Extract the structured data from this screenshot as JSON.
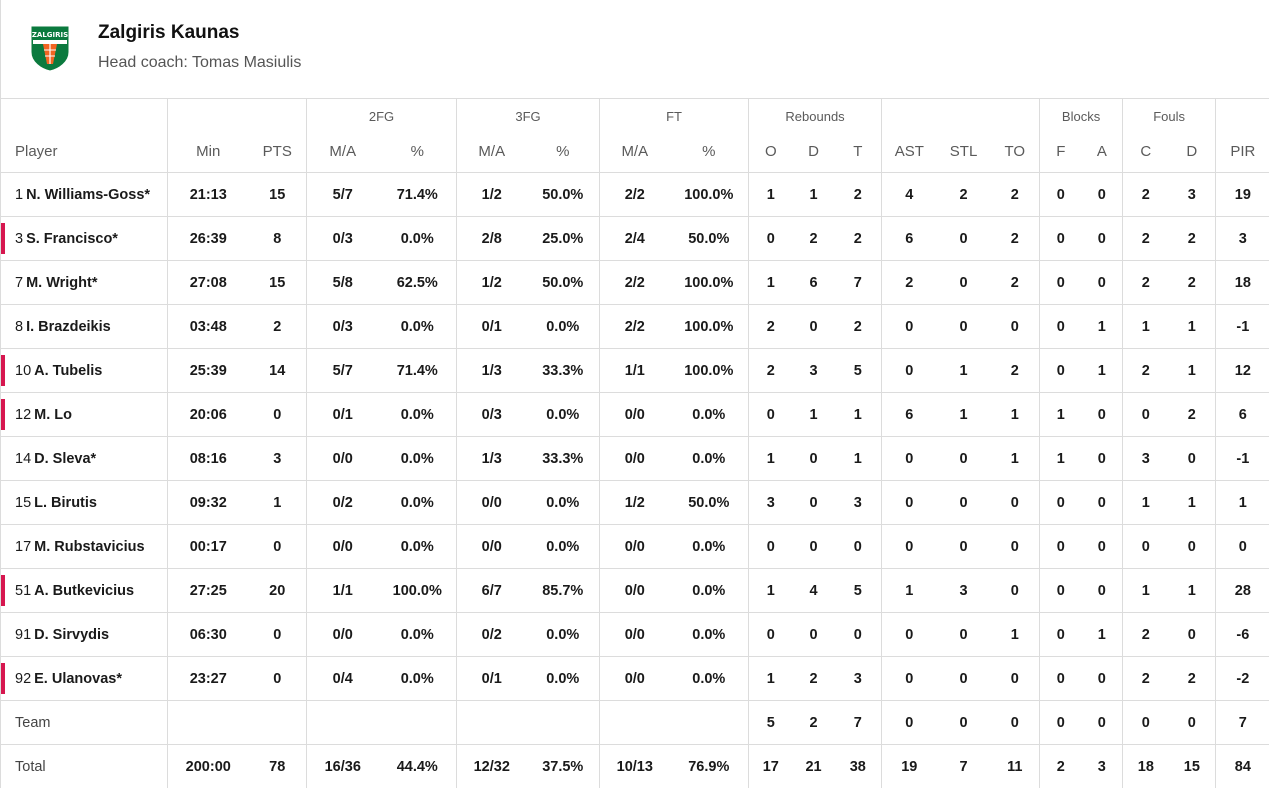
{
  "team": {
    "name": "Zalgiris Kaunas",
    "coach": "Head coach: Tomas Masiulis",
    "logo_text": "ZALGIRIS",
    "logo_colors": {
      "green": "#0b7a3e",
      "orange": "#f26522",
      "white": "#ffffff"
    }
  },
  "colors": {
    "starter_bar": "#d6174f",
    "divider": "#dcdcdc"
  },
  "groups": {
    "twofg": "2FG",
    "threefg": "3FG",
    "ft": "FT",
    "rebounds": "Rebounds",
    "blocks": "Blocks",
    "fouls": "Fouls"
  },
  "columns": {
    "player": "Player",
    "min": "Min",
    "pts": "PTS",
    "twofg_ma": "M/A",
    "twofg_pct": "%",
    "threefg_ma": "M/A",
    "threefg_pct": "%",
    "ft_ma": "M/A",
    "ft_pct": "%",
    "reb_o": "O",
    "reb_d": "D",
    "reb_t": "T",
    "ast": "AST",
    "stl": "STL",
    "to": "TO",
    "blk_f": "F",
    "blk_a": "A",
    "foul_c": "C",
    "foul_d": "D",
    "pir": "PIR"
  },
  "players": [
    {
      "num": "1",
      "name": "N. Williams-Goss*",
      "marked": false,
      "min": "21:13",
      "pts": "15",
      "twofg_ma": "5/7",
      "twofg_pct": "71.4%",
      "threefg_ma": "1/2",
      "threefg_pct": "50.0%",
      "ft_ma": "2/2",
      "ft_pct": "100.0%",
      "reb_o": "1",
      "reb_d": "1",
      "reb_t": "2",
      "ast": "4",
      "stl": "2",
      "to": "2",
      "blk_f": "0",
      "blk_a": "0",
      "foul_c": "2",
      "foul_d": "3",
      "pir": "19"
    },
    {
      "num": "3",
      "name": "S. Francisco*",
      "marked": true,
      "min": "26:39",
      "pts": "8",
      "twofg_ma": "0/3",
      "twofg_pct": "0.0%",
      "threefg_ma": "2/8",
      "threefg_pct": "25.0%",
      "ft_ma": "2/4",
      "ft_pct": "50.0%",
      "reb_o": "0",
      "reb_d": "2",
      "reb_t": "2",
      "ast": "6",
      "stl": "0",
      "to": "2",
      "blk_f": "0",
      "blk_a": "0",
      "foul_c": "2",
      "foul_d": "2",
      "pir": "3"
    },
    {
      "num": "7",
      "name": "M. Wright*",
      "marked": false,
      "min": "27:08",
      "pts": "15",
      "twofg_ma": "5/8",
      "twofg_pct": "62.5%",
      "threefg_ma": "1/2",
      "threefg_pct": "50.0%",
      "ft_ma": "2/2",
      "ft_pct": "100.0%",
      "reb_o": "1",
      "reb_d": "6",
      "reb_t": "7",
      "ast": "2",
      "stl": "0",
      "to": "2",
      "blk_f": "0",
      "blk_a": "0",
      "foul_c": "2",
      "foul_d": "2",
      "pir": "18"
    },
    {
      "num": "8",
      "name": "I. Brazdeikis",
      "marked": false,
      "min": "03:48",
      "pts": "2",
      "twofg_ma": "0/3",
      "twofg_pct": "0.0%",
      "threefg_ma": "0/1",
      "threefg_pct": "0.0%",
      "ft_ma": "2/2",
      "ft_pct": "100.0%",
      "reb_o": "2",
      "reb_d": "0",
      "reb_t": "2",
      "ast": "0",
      "stl": "0",
      "to": "0",
      "blk_f": "0",
      "blk_a": "1",
      "foul_c": "1",
      "foul_d": "1",
      "pir": "-1"
    },
    {
      "num": "10",
      "name": "A. Tubelis",
      "marked": true,
      "min": "25:39",
      "pts": "14",
      "twofg_ma": "5/7",
      "twofg_pct": "71.4%",
      "threefg_ma": "1/3",
      "threefg_pct": "33.3%",
      "ft_ma": "1/1",
      "ft_pct": "100.0%",
      "reb_o": "2",
      "reb_d": "3",
      "reb_t": "5",
      "ast": "0",
      "stl": "1",
      "to": "2",
      "blk_f": "0",
      "blk_a": "1",
      "foul_c": "2",
      "foul_d": "1",
      "pir": "12"
    },
    {
      "num": "12",
      "name": "M. Lo",
      "marked": true,
      "min": "20:06",
      "pts": "0",
      "twofg_ma": "0/1",
      "twofg_pct": "0.0%",
      "threefg_ma": "0/3",
      "threefg_pct": "0.0%",
      "ft_ma": "0/0",
      "ft_pct": "0.0%",
      "reb_o": "0",
      "reb_d": "1",
      "reb_t": "1",
      "ast": "6",
      "stl": "1",
      "to": "1",
      "blk_f": "1",
      "blk_a": "0",
      "foul_c": "0",
      "foul_d": "2",
      "pir": "6"
    },
    {
      "num": "14",
      "name": "D. Sleva*",
      "marked": false,
      "min": "08:16",
      "pts": "3",
      "twofg_ma": "0/0",
      "twofg_pct": "0.0%",
      "threefg_ma": "1/3",
      "threefg_pct": "33.3%",
      "ft_ma": "0/0",
      "ft_pct": "0.0%",
      "reb_o": "1",
      "reb_d": "0",
      "reb_t": "1",
      "ast": "0",
      "stl": "0",
      "to": "1",
      "blk_f": "1",
      "blk_a": "0",
      "foul_c": "3",
      "foul_d": "0",
      "pir": "-1"
    },
    {
      "num": "15",
      "name": "L. Birutis",
      "marked": false,
      "min": "09:32",
      "pts": "1",
      "twofg_ma": "0/2",
      "twofg_pct": "0.0%",
      "threefg_ma": "0/0",
      "threefg_pct": "0.0%",
      "ft_ma": "1/2",
      "ft_pct": "50.0%",
      "reb_o": "3",
      "reb_d": "0",
      "reb_t": "3",
      "ast": "0",
      "stl": "0",
      "to": "0",
      "blk_f": "0",
      "blk_a": "0",
      "foul_c": "1",
      "foul_d": "1",
      "pir": "1"
    },
    {
      "num": "17",
      "name": "M. Rubstavicius",
      "marked": false,
      "min": "00:17",
      "pts": "0",
      "twofg_ma": "0/0",
      "twofg_pct": "0.0%",
      "threefg_ma": "0/0",
      "threefg_pct": "0.0%",
      "ft_ma": "0/0",
      "ft_pct": "0.0%",
      "reb_o": "0",
      "reb_d": "0",
      "reb_t": "0",
      "ast": "0",
      "stl": "0",
      "to": "0",
      "blk_f": "0",
      "blk_a": "0",
      "foul_c": "0",
      "foul_d": "0",
      "pir": "0"
    },
    {
      "num": "51",
      "name": "A. Butkevicius",
      "marked": true,
      "min": "27:25",
      "pts": "20",
      "twofg_ma": "1/1",
      "twofg_pct": "100.0%",
      "threefg_ma": "6/7",
      "threefg_pct": "85.7%",
      "ft_ma": "0/0",
      "ft_pct": "0.0%",
      "reb_o": "1",
      "reb_d": "4",
      "reb_t": "5",
      "ast": "1",
      "stl": "3",
      "to": "0",
      "blk_f": "0",
      "blk_a": "0",
      "foul_c": "1",
      "foul_d": "1",
      "pir": "28"
    },
    {
      "num": "91",
      "name": "D. Sirvydis",
      "marked": false,
      "min": "06:30",
      "pts": "0",
      "twofg_ma": "0/0",
      "twofg_pct": "0.0%",
      "threefg_ma": "0/2",
      "threefg_pct": "0.0%",
      "ft_ma": "0/0",
      "ft_pct": "0.0%",
      "reb_o": "0",
      "reb_d": "0",
      "reb_t": "0",
      "ast": "0",
      "stl": "0",
      "to": "1",
      "blk_f": "0",
      "blk_a": "1",
      "foul_c": "2",
      "foul_d": "0",
      "pir": "-6"
    },
    {
      "num": "92",
      "name": "E. Ulanovas*",
      "marked": true,
      "min": "23:27",
      "pts": "0",
      "twofg_ma": "0/4",
      "twofg_pct": "0.0%",
      "threefg_ma": "0/1",
      "threefg_pct": "0.0%",
      "ft_ma": "0/0",
      "ft_pct": "0.0%",
      "reb_o": "1",
      "reb_d": "2",
      "reb_t": "3",
      "ast": "0",
      "stl": "0",
      "to": "0",
      "blk_f": "0",
      "blk_a": "0",
      "foul_c": "2",
      "foul_d": "2",
      "pir": "-2"
    }
  ],
  "team_row": {
    "label": "Team",
    "min": "",
    "pts": "",
    "twofg_ma": "",
    "twofg_pct": "",
    "threefg_ma": "",
    "threefg_pct": "",
    "ft_ma": "",
    "ft_pct": "",
    "reb_o": "5",
    "reb_d": "2",
    "reb_t": "7",
    "ast": "0",
    "stl": "0",
    "to": "0",
    "blk_f": "0",
    "blk_a": "0",
    "foul_c": "0",
    "foul_d": "0",
    "pir": "7"
  },
  "total_row": {
    "label": "Total",
    "min": "200:00",
    "pts": "78",
    "twofg_ma": "16/36",
    "twofg_pct": "44.4%",
    "threefg_ma": "12/32",
    "threefg_pct": "37.5%",
    "ft_ma": "10/13",
    "ft_pct": "76.9%",
    "reb_o": "17",
    "reb_d": "21",
    "reb_t": "38",
    "ast": "19",
    "stl": "7",
    "to": "11",
    "blk_f": "2",
    "blk_a": "3",
    "foul_c": "18",
    "foul_d": "15",
    "pir": "84"
  }
}
